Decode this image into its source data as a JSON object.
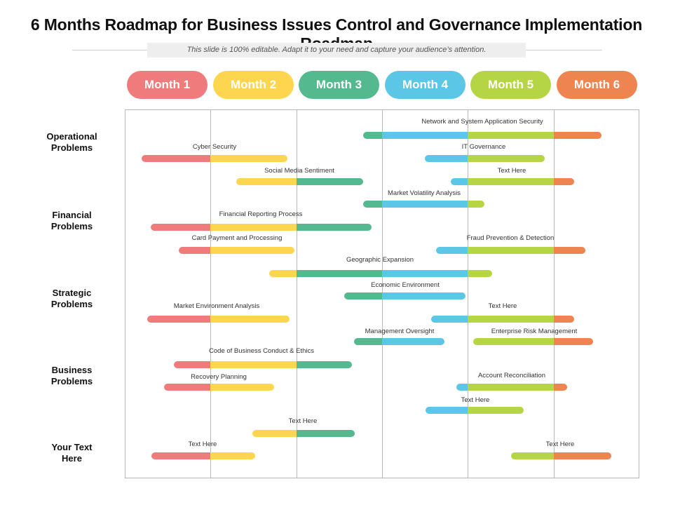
{
  "title": "6 Months Roadmap for Business Issues Control and Governance Implementation Roadmap",
  "subtitle": "This slide is 100% editable. Adapt it to your need and capture your audience’s attention.",
  "colors": {
    "red": "#EF7B7C",
    "yellow": "#FDD54F",
    "teal": "#55B98F",
    "blue": "#5CC6E6",
    "green": "#B5D544",
    "orange": "#EE8450"
  },
  "months": [
    {
      "label": "Month 1",
      "color": "#EF7B7C"
    },
    {
      "label": "Month 2",
      "color": "#FDD54F"
    },
    {
      "label": "Month 3",
      "color": "#55B98F"
    },
    {
      "label": "Month 4",
      "color": "#5CC6E6"
    },
    {
      "label": "Month 5",
      "color": "#B5D544"
    },
    {
      "label": "Month 6",
      "color": "#EE8450"
    }
  ],
  "categories": [
    {
      "line1": "Operational",
      "line2": "Problems"
    },
    {
      "line1": "Financial",
      "line2": "Problems"
    },
    {
      "line1": "Strategic",
      "line2": "Problems"
    },
    {
      "line1": "Business",
      "line2": "Problems"
    },
    {
      "line1": "Your Text",
      "line2": "Here"
    }
  ],
  "tasks": [
    {
      "label": "Network and System Application Security",
      "start": 2.78,
      "end": 5.56
    },
    {
      "label": "Cyber Security",
      "start": 0.2,
      "end": 1.9
    },
    {
      "label": "IT Governance",
      "start": 3.5,
      "end": 4.9
    },
    {
      "label": "Social Media Sentiment",
      "start": 1.3,
      "end": 2.78
    },
    {
      "label": "Text Here",
      "start": 3.8,
      "end": 5.24
    },
    {
      "label": "Market Volatility Analysis",
      "start": 2.78,
      "end": 4.19
    },
    {
      "label": "Financial Reporting Process",
      "start": 0.3,
      "end": 2.88
    },
    {
      "label": "Card Payment and Processing",
      "start": 0.63,
      "end": 1.98
    },
    {
      "label": "Fraud Prevention & Detection",
      "start": 3.63,
      "end": 5.37
    },
    {
      "label": "Geographic Expansion",
      "start": 1.68,
      "end": 4.28
    },
    {
      "label": "Economic Environment",
      "start": 2.56,
      "end": 3.97
    },
    {
      "label": "Market Environment Analysis",
      "start": 0.26,
      "end": 1.92
    },
    {
      "label": "Text Here",
      "start": 3.57,
      "end": 5.24
    },
    {
      "label": "Management Oversight",
      "start": 2.67,
      "end": 3.73
    },
    {
      "label": "Enterprise Risk Management",
      "start": 4.06,
      "end": 5.46
    },
    {
      "label": "Code of Business Conduct & Ethics",
      "start": 0.57,
      "end": 2.65
    },
    {
      "label": "Recovery Planning",
      "start": 0.46,
      "end": 1.74
    },
    {
      "label": "Account Reconciliation",
      "start": 3.87,
      "end": 5.16
    },
    {
      "label": "Text Here",
      "start": 3.51,
      "end": 4.65
    },
    {
      "label": "Text Here",
      "start": 1.49,
      "end": 2.68
    },
    {
      "label": "Text Here",
      "start": 0.31,
      "end": 1.52
    },
    {
      "label": "Text Here",
      "start": 4.5,
      "end": 5.67
    }
  ]
}
